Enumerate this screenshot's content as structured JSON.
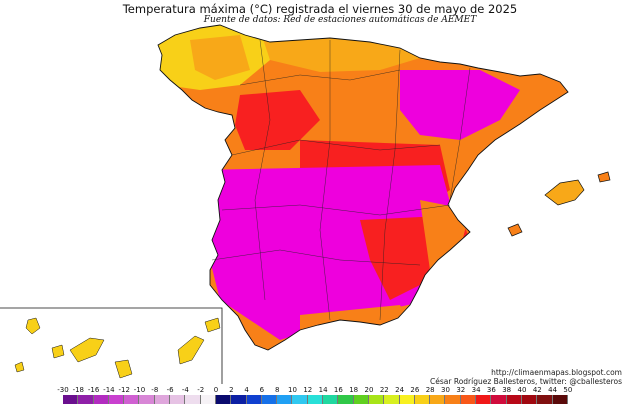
{
  "title": "Temperatura máxima (°C) registrada el viernes 30 de mayo de 2025",
  "source": "Fuente de datos: Red de estaciones automáticas de AEMET",
  "credit_url": "http://climaenmapas.blogspot.com",
  "credit_author": "César Rodríguez Ballesteros, twitter: @cballesteros",
  "scale": {
    "labels": [
      "-30",
      "-18",
      "-16",
      "-14",
      "-12",
      "-10",
      "-8",
      "-6",
      "-4",
      "-2",
      "0",
      "2",
      "4",
      "6",
      "8",
      "10",
      "12",
      "14",
      "16",
      "18",
      "20",
      "22",
      "24",
      "26",
      "28",
      "30",
      "32",
      "34",
      "36",
      "38",
      "40",
      "42",
      "44",
      "50"
    ],
    "colors": [
      "#6a0f8e",
      "#8f1fa8",
      "#b22cc0",
      "#c940cf",
      "#d060d2",
      "#d886d6",
      "#dfa6dc",
      "#e6c2e4",
      "#eeddee",
      "#f6f2f6",
      "#0a0a6e",
      "#0c1fa3",
      "#1040d0",
      "#1670e8",
      "#20a0f4",
      "#30c8f0",
      "#28e0d8",
      "#20d8a0",
      "#30c848",
      "#60d020",
      "#a8e418",
      "#d8f020",
      "#f8f020",
      "#f8d018",
      "#f8a818",
      "#f88018",
      "#f85818",
      "#f01818",
      "#d00c3c",
      "#b80818",
      "#a00810",
      "#801010",
      "#5a0a0a"
    ]
  },
  "map_colors": {
    "sea": "#ffffff",
    "outline": "#111111",
    "magenta": "#ee00dd",
    "pink": "#f230b0",
    "red": "#f82020",
    "orange": "#f88018",
    "light_orange": "#f8a818",
    "yellow": "#f8d018",
    "green": "#60d020"
  }
}
